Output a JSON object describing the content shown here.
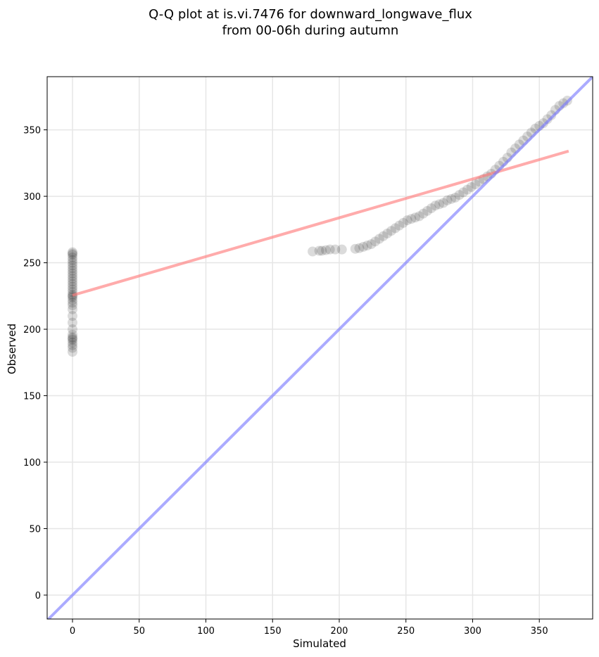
{
  "chart_data": {
    "type": "scatter",
    "title_line1": "Q-Q plot at is.vi.7476 for downward_longwave_flux",
    "title_line2": "from 00-06h during autumn",
    "xlabel": "Simulated",
    "ylabel": "Observed",
    "xlim": [
      -19,
      390
    ],
    "ylim": [
      -18,
      390
    ],
    "xticks": [
      0,
      50,
      100,
      150,
      200,
      250,
      300,
      350
    ],
    "yticks": [
      0,
      50,
      100,
      150,
      200,
      250,
      300,
      350
    ],
    "grid": true,
    "series": [
      {
        "kind": "quantile-points",
        "color": "#000000",
        "points": [
          [
            0,
            183
          ],
          [
            0,
            186
          ],
          [
            0,
            188
          ],
          [
            0,
            190
          ],
          [
            0,
            192
          ],
          [
            0,
            193
          ],
          [
            0,
            194
          ],
          [
            0,
            196
          ],
          [
            0,
            200
          ],
          [
            0,
            205
          ],
          [
            0,
            210
          ],
          [
            0,
            215
          ],
          [
            0,
            218
          ],
          [
            0,
            220
          ],
          [
            0,
            222
          ],
          [
            0,
            224
          ],
          [
            0,
            225
          ],
          [
            0,
            226
          ],
          [
            0,
            228
          ],
          [
            0,
            230
          ],
          [
            0,
            232
          ],
          [
            0,
            234
          ],
          [
            0,
            236
          ],
          [
            0,
            238
          ],
          [
            0,
            240
          ],
          [
            0,
            242
          ],
          [
            0,
            244
          ],
          [
            0,
            246
          ],
          [
            0,
            248
          ],
          [
            0,
            250
          ],
          [
            0,
            252
          ],
          [
            0,
            254
          ],
          [
            0,
            256
          ],
          [
            0,
            257
          ],
          [
            0,
            258
          ],
          [
            180,
            258.5
          ],
          [
            185,
            259
          ],
          [
            187,
            259
          ],
          [
            190,
            259.5
          ],
          [
            193,
            260
          ],
          [
            197,
            260
          ],
          [
            202,
            260
          ],
          [
            212,
            260.5
          ],
          [
            215,
            261
          ],
          [
            218,
            262
          ],
          [
            221,
            263
          ],
          [
            224,
            264
          ],
          [
            227,
            266
          ],
          [
            230,
            268
          ],
          [
            233,
            270
          ],
          [
            236,
            272
          ],
          [
            239,
            274
          ],
          [
            242,
            276
          ],
          [
            245,
            278
          ],
          [
            248,
            280
          ],
          [
            251,
            282
          ],
          [
            254,
            283
          ],
          [
            257,
            284
          ],
          [
            260,
            285
          ],
          [
            263,
            287
          ],
          [
            266,
            289
          ],
          [
            269,
            291
          ],
          [
            272,
            293
          ],
          [
            275,
            294
          ],
          [
            278,
            295
          ],
          [
            281,
            297
          ],
          [
            284,
            298
          ],
          [
            287,
            299
          ],
          [
            290,
            301
          ],
          [
            293,
            303
          ],
          [
            296,
            305
          ],
          [
            299,
            307
          ],
          [
            302,
            309
          ],
          [
            305,
            311
          ],
          [
            308,
            313
          ],
          [
            311,
            315
          ],
          [
            314,
            317
          ],
          [
            317,
            320
          ],
          [
            320,
            323
          ],
          [
            323,
            326
          ],
          [
            326,
            329
          ],
          [
            329,
            333
          ],
          [
            332,
            336
          ],
          [
            335,
            339
          ],
          [
            338,
            342
          ],
          [
            341,
            345
          ],
          [
            344,
            348
          ],
          [
            347,
            351
          ],
          [
            350,
            353
          ],
          [
            353,
            355
          ],
          [
            356,
            358
          ],
          [
            359,
            361
          ],
          [
            362,
            365
          ],
          [
            365,
            368
          ],
          [
            368,
            370
          ],
          [
            371,
            372
          ]
        ]
      },
      {
        "kind": "regression-line",
        "color": "#ff7777",
        "points": [
          [
            0,
            225.5
          ],
          [
            372,
            334
          ]
        ]
      },
      {
        "kind": "identity-line",
        "color": "#7777ff",
        "points": [
          [
            -19,
            -19
          ],
          [
            390,
            390
          ]
        ]
      }
    ]
  }
}
